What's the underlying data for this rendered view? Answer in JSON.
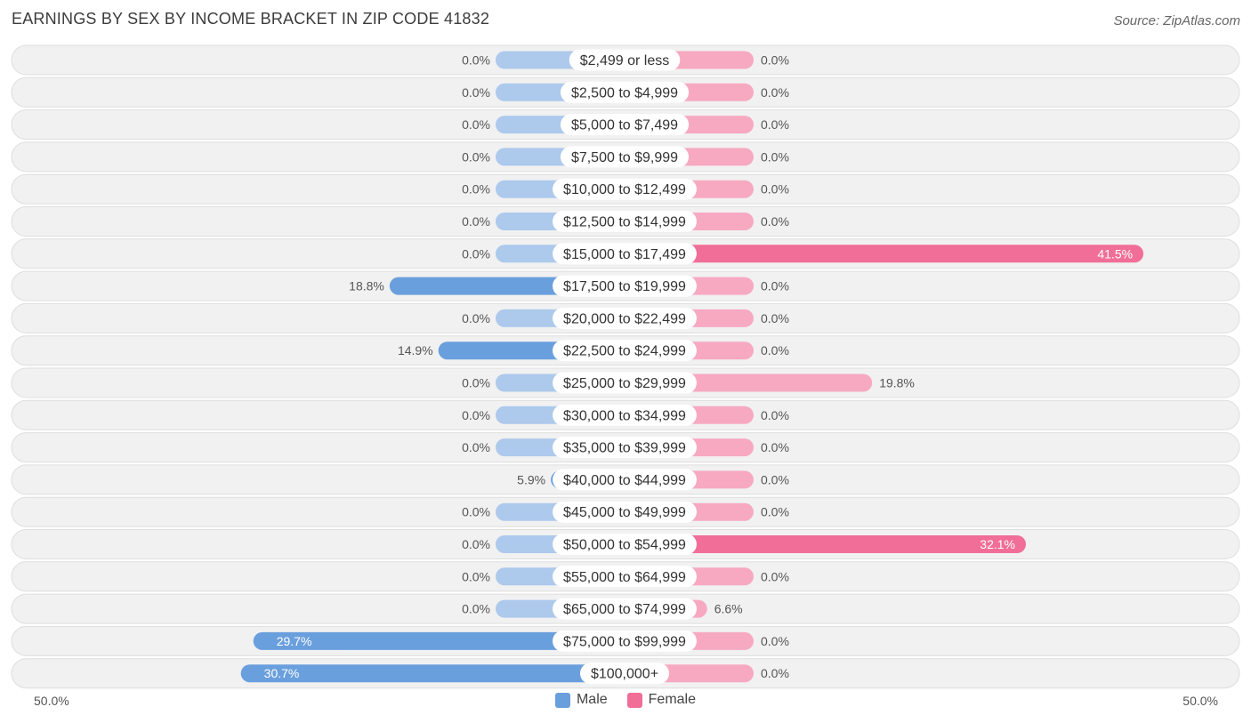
{
  "title": "EARNINGS BY SEX BY INCOME BRACKET IN ZIP CODE 41832",
  "source": "Source: ZipAtlas.com",
  "colors": {
    "male_light": "#adc9ec",
    "male_dark": "#6a9fdd",
    "female_light": "#f7a9c2",
    "female_dark": "#f06e98"
  },
  "chart_data": {
    "type": "bar",
    "orientation": "horizontal-diverging",
    "categories": [
      "$2,499 or less",
      "$2,500 to $4,999",
      "$5,000 to $7,499",
      "$7,500 to $9,999",
      "$10,000 to $12,499",
      "$12,500 to $14,999",
      "$15,000 to $17,499",
      "$17,500 to $19,999",
      "$20,000 to $22,499",
      "$22,500 to $24,999",
      "$25,000 to $29,999",
      "$30,000 to $34,999",
      "$35,000 to $39,999",
      "$40,000 to $44,999",
      "$45,000 to $49,999",
      "$50,000 to $54,999",
      "$55,000 to $64,999",
      "$65,000 to $74,999",
      "$75,000 to $99,999",
      "$100,000+"
    ],
    "series": [
      {
        "name": "Male",
        "values": [
          0,
          0,
          0,
          0,
          0,
          0,
          0,
          18.8,
          0,
          14.9,
          0,
          0,
          0,
          5.9,
          0,
          0,
          0,
          0,
          29.7,
          30.7
        ]
      },
      {
        "name": "Female",
        "values": [
          0,
          0,
          0,
          0,
          0,
          0,
          41.5,
          0,
          0,
          0,
          19.8,
          0,
          0,
          0,
          0,
          32.1,
          0,
          6.6,
          0,
          0
        ]
      }
    ],
    "value_labels": {
      "Male": [
        "0.0%",
        "0.0%",
        "0.0%",
        "0.0%",
        "0.0%",
        "0.0%",
        "0.0%",
        "18.8%",
        "0.0%",
        "14.9%",
        "0.0%",
        "0.0%",
        "0.0%",
        "5.9%",
        "0.0%",
        "0.0%",
        "0.0%",
        "0.0%",
        "29.7%",
        "30.7%"
      ],
      "Female": [
        "0.0%",
        "0.0%",
        "0.0%",
        "0.0%",
        "0.0%",
        "0.0%",
        "41.5%",
        "0.0%",
        "0.0%",
        "0.0%",
        "19.8%",
        "0.0%",
        "0.0%",
        "0.0%",
        "0.0%",
        "32.1%",
        "0.0%",
        "6.6%",
        "0.0%",
        "0.0%"
      ]
    },
    "xlim": [
      -50,
      50
    ],
    "axis_labels": {
      "left": "50.0%",
      "right": "50.0%"
    },
    "legend": [
      "Male",
      "Female"
    ],
    "legend_position": "bottom-center"
  }
}
